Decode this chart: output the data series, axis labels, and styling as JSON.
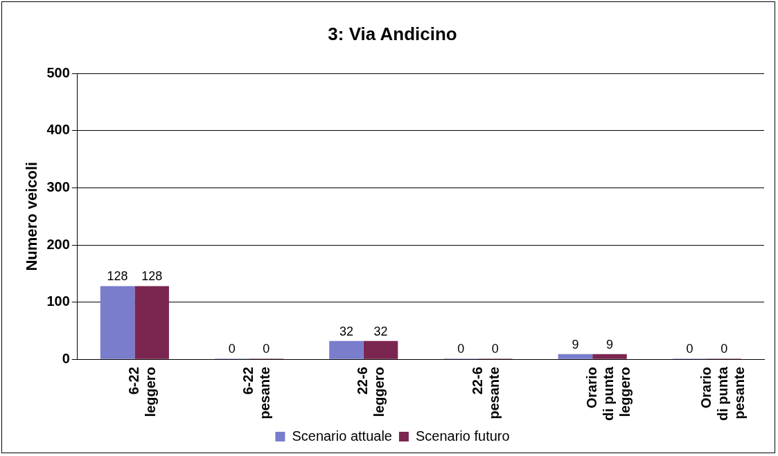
{
  "chart_data": {
    "type": "bar",
    "title": "3: Via Andicino",
    "ylabel": "Numero veicoli",
    "categories": [
      "6-22 leggero",
      "6-22 pesante",
      "22-6 leggero",
      "22-6 pesante",
      "Orario di punta leggero",
      "Orario di punta pesante"
    ],
    "series": [
      {
        "name": "Scenario attuale",
        "color": "#7a7dcc",
        "values": [
          128,
          0,
          32,
          0,
          9,
          0
        ]
      },
      {
        "name": "Scenario futuro",
        "color": "#7b2650",
        "values": [
          128,
          0,
          32,
          0,
          9,
          0
        ]
      }
    ],
    "ylim": [
      0,
      500
    ],
    "yticks": [
      0,
      100,
      200,
      300,
      400,
      500
    ],
    "grid": "y",
    "legend": "bottom",
    "data_labels": true
  }
}
